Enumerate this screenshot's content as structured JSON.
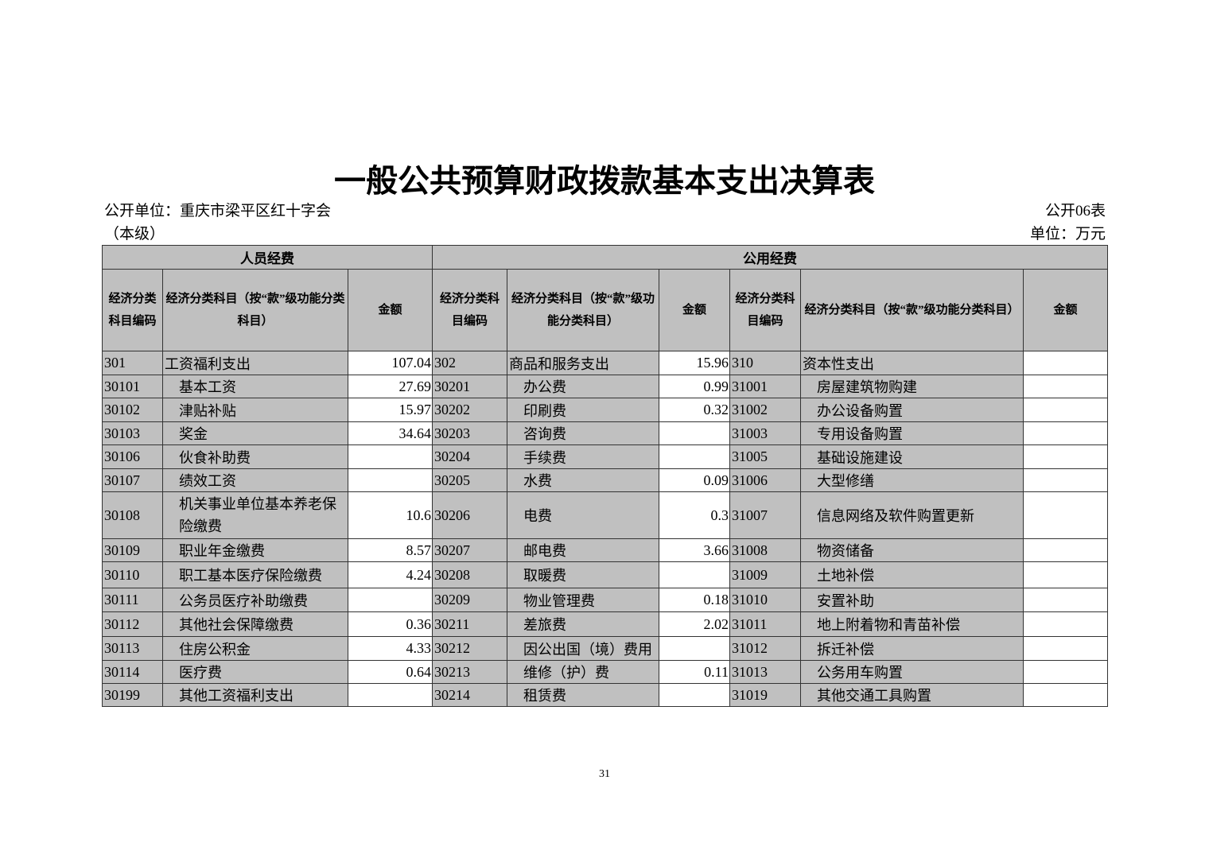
{
  "title": "一般公共预算财政拨款基本支出决算表",
  "unit_name": "公开单位：重庆市梁平区红十字会（本级）",
  "form_no": "公开06表",
  "currency_unit": "单位：万元",
  "groups": [
    "人员经费",
    "公用经费"
  ],
  "headers": [
    "经济分类科目编码",
    "经济分类科目（按“款”级功能分类科目）",
    "金额",
    "经济分类科目编码",
    "经济分类科目（按“款”级功能分类科目）",
    "金额",
    "经济分类科目编码",
    "经济分类科目（按“款”级功能分类科目）",
    "金额"
  ],
  "rows": [
    [
      "301",
      "工资福利支出",
      "107.04",
      "302",
      "商品和服务支出",
      "15.96",
      "310",
      "资本性支出",
      ""
    ],
    [
      "30101",
      "基本工资",
      "27.69",
      "30201",
      "办公费",
      "0.99",
      "31001",
      "房屋建筑物购建",
      ""
    ],
    [
      "30102",
      "津贴补贴",
      "15.97",
      "30202",
      "印刷费",
      "0.32",
      "31002",
      "办公设备购置",
      ""
    ],
    [
      "30103",
      "奖金",
      "34.64",
      "30203",
      "咨询费",
      "",
      "31003",
      "专用设备购置",
      ""
    ],
    [
      "30106",
      "伙食补助费",
      "",
      "30204",
      "手续费",
      "",
      "31005",
      "基础设施建设",
      ""
    ],
    [
      "30107",
      "绩效工资",
      "",
      "30205",
      "水费",
      "0.09",
      "31006",
      "大型修缮",
      ""
    ],
    [
      "30108",
      "机关事业单位基本养老保险缴费",
      "10.6",
      "30206",
      "电费",
      "0.3",
      "31007",
      "信息网络及软件购置更新",
      ""
    ],
    [
      "30109",
      "职业年金缴费",
      "8.57",
      "30207",
      "邮电费",
      "3.66",
      "31008",
      "物资储备",
      ""
    ],
    [
      "30110",
      "职工基本医疗保险缴费",
      "4.24",
      "30208",
      "取暖费",
      "",
      "31009",
      "土地补偿",
      ""
    ],
    [
      "30111",
      "公务员医疗补助缴费",
      "",
      "30209",
      "物业管理费",
      "0.18",
      "31010",
      "安置补助",
      ""
    ],
    [
      "30112",
      "其他社会保障缴费",
      "0.36",
      "30211",
      "差旅费",
      "2.02",
      "31011",
      "地上附着物和青苗补偿",
      ""
    ],
    [
      "30113",
      "住房公积金",
      "4.33",
      "30212",
      "因公出国（境）费用",
      "",
      "31012",
      "拆迁补偿",
      ""
    ],
    [
      "30114",
      "医疗费",
      "0.64",
      "30213",
      "维修（护）费",
      "0.11",
      "31013",
      "公务用车购置",
      ""
    ],
    [
      "30199",
      "其他工资福利支出",
      "",
      "30214",
      "租赁费",
      "",
      "31019",
      "其他交通工具购置",
      ""
    ]
  ],
  "page_number": "31"
}
